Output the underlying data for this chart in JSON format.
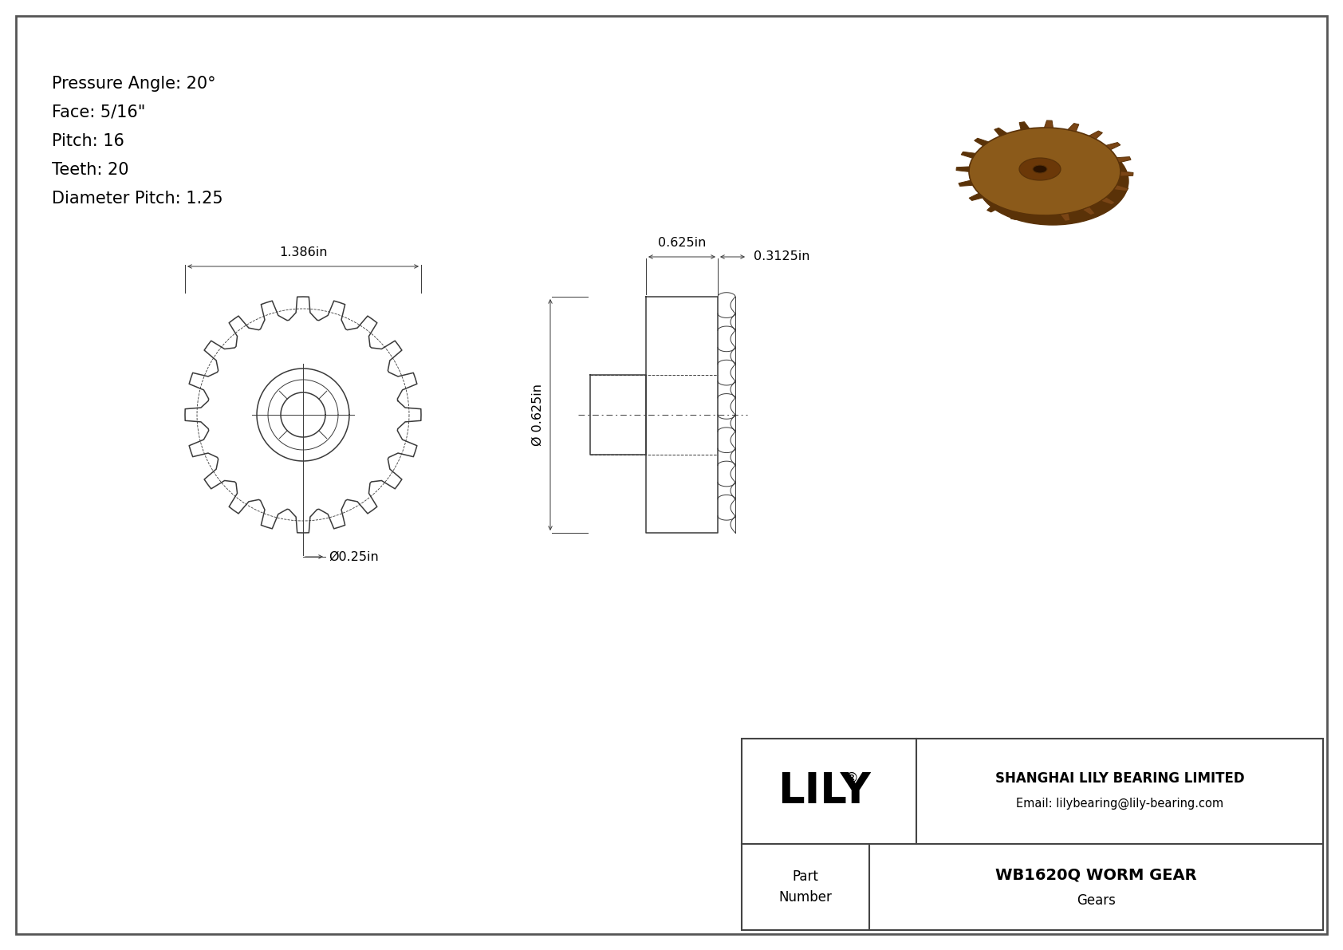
{
  "page_bg": "#ffffff",
  "line_color": "#3a3a3a",
  "specs": [
    "Pressure Angle: 20°",
    "Face: 5/16\"",
    "Pitch: 16",
    "Teeth: 20",
    "Diameter Pitch: 1.25"
  ],
  "spec_fontsize": 15,
  "dim_fontsize": 11.5,
  "company_name": "SHANGHAI LILY BEARING LIMITED",
  "company_email": "Email: lilybearing@lily-bearing.com",
  "lily_logo": "LILY",
  "part_label": "Part\nNumber",
  "part_number": "WB1620Q WORM GEAR",
  "category": "Gears",
  "dim_width_front": "1.386in",
  "dim_bore_front": "Ø0.25in",
  "dim_diameter_side": "Ø 0.625in",
  "dim_hub_width": "0.3125in",
  "dim_gear_width_side": "0.625in",
  "num_teeth": 20,
  "gear_brown1": "#7a4a18",
  "gear_brown2": "#5a3208",
  "gear_brown3": "#9B6020"
}
